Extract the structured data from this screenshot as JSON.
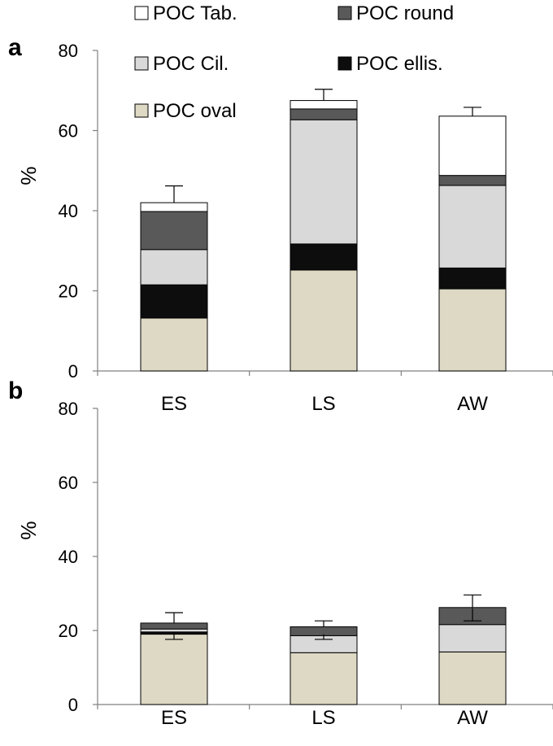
{
  "chart_data": [
    {
      "panel_label": "a",
      "type": "bar",
      "stacked": true,
      "categories": [
        "ES",
        "LS",
        "AW"
      ],
      "ylabel": "%",
      "ylim": [
        0,
        80
      ],
      "yticks": [
        0,
        20,
        40,
        60,
        80
      ],
      "grid": false,
      "legend_position": "top",
      "series": [
        {
          "name": "POC  oval",
          "color": "#ddd9c4",
          "values": [
            13.2,
            25.2,
            20.5
          ]
        },
        {
          "name": "POC  ellis.",
          "color": "#0d0d0d",
          "values": [
            8.3,
            6.5,
            5.2
          ]
        },
        {
          "name": "POC  Cil.",
          "color": "#d9d9d9",
          "values": [
            8.8,
            31.0,
            20.6
          ]
        },
        {
          "name": "POC round",
          "color": "#595959",
          "values": [
            9.5,
            2.7,
            2.5
          ]
        },
        {
          "name": "POC Tab.",
          "color": "#ffffff",
          "values": [
            2.2,
            2.1,
            14.8
          ]
        }
      ],
      "error_bars": [
        4.2,
        2.8,
        2.2
      ]
    },
    {
      "panel_label": "b",
      "type": "bar",
      "stacked": true,
      "categories": [
        "ES",
        "LS",
        "AW"
      ],
      "ylabel": "%",
      "ylim": [
        0,
        80
      ],
      "yticks": [
        0,
        20,
        40,
        60,
        80
      ],
      "grid": false,
      "series": [
        {
          "name": "POC  oval",
          "color": "#ddd9c4",
          "values": [
            19.0,
            14.0,
            14.2
          ]
        },
        {
          "name": "POC  ellis.",
          "color": "#0d0d0d",
          "values": [
            0.6,
            0.0,
            0.0
          ]
        },
        {
          "name": "POC  Cil.",
          "color": "#d9d9d9",
          "values": [
            0.8,
            4.6,
            7.4
          ]
        },
        {
          "name": "POC round",
          "color": "#595959",
          "values": [
            1.6,
            2.4,
            4.6
          ]
        },
        {
          "name": "POC Tab.",
          "color": "#ffffff",
          "values": [
            0.0,
            0.0,
            0.0
          ]
        }
      ],
      "error_bars": [
        2.8,
        1.6,
        3.4
      ],
      "error_bar_low_base": [
        19.4,
        19.0,
        26.0
      ],
      "error_bar_low": [
        1.8,
        1.4,
        3.4
      ]
    }
  ],
  "legend": [
    {
      "label": "POC Tab.",
      "color": "#ffffff"
    },
    {
      "label": "POC round",
      "color": "#595959"
    },
    {
      "label": "POC  Cil.",
      "color": "#d9d9d9"
    },
    {
      "label": "POC  ellis.",
      "color": "#0d0d0d"
    },
    {
      "label": "POC  oval",
      "color": "#ddd9c4"
    }
  ]
}
